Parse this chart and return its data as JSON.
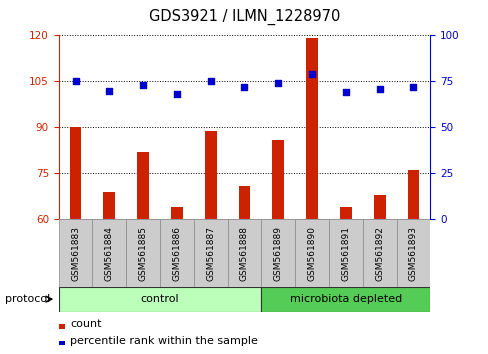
{
  "title": "GDS3921 / ILMN_1228970",
  "samples": [
    "GSM561883",
    "GSM561884",
    "GSM561885",
    "GSM561886",
    "GSM561887",
    "GSM561888",
    "GSM561889",
    "GSM561890",
    "GSM561891",
    "GSM561892",
    "GSM561893"
  ],
  "counts": [
    90,
    69,
    82,
    64,
    89,
    71,
    86,
    119,
    64,
    68,
    76
  ],
  "percentile_ranks": [
    75,
    70,
    73,
    68,
    75,
    72,
    74,
    79,
    69,
    71,
    72
  ],
  "ylim_left": [
    60,
    120
  ],
  "ylim_right": [
    0,
    100
  ],
  "yticks_left": [
    60,
    75,
    90,
    105,
    120
  ],
  "yticks_right": [
    0,
    25,
    50,
    75,
    100
  ],
  "bar_color": "#cc2200",
  "dot_color": "#0000cc",
  "control_samples": 6,
  "control_label": "control",
  "treatment_label": "microbiota depleted",
  "protocol_label": "protocol",
  "legend_bar_label": "count",
  "legend_dot_label": "percentile rank within the sample",
  "control_color": "#bbffbb",
  "treatment_color": "#55cc55",
  "label_bg_color": "#cccccc",
  "figsize": [
    4.89,
    3.54
  ],
  "dpi": 100
}
